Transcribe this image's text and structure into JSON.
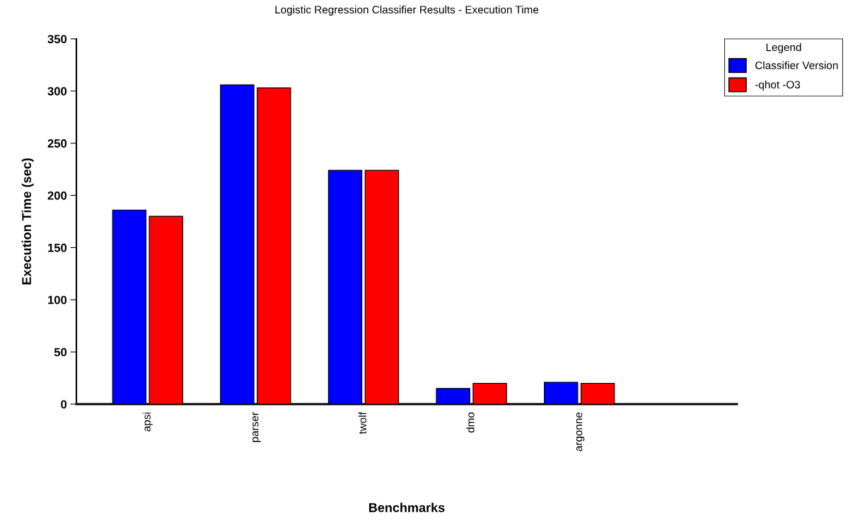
{
  "chart_data": {
    "type": "bar",
    "title": "Logistic Regression Classifier Results - Execution Time",
    "xlabel": "Benchmarks",
    "ylabel": "Execution Time (sec)",
    "legend_title": "Legend",
    "categories": [
      "apsi",
      "parser",
      "twolf",
      "dmo",
      "argonne",
      null
    ],
    "series": [
      {
        "name": "Classifier Version",
        "color": "#0000ff",
        "values": [
          186,
          306,
          224,
          15,
          21,
          null
        ]
      },
      {
        "name": "-qhot -O3",
        "color": "#ff0000",
        "values": [
          180,
          303,
          224,
          20,
          20,
          null
        ]
      }
    ],
    "ylim": [
      0,
      350
    ],
    "yticks": [
      0,
      50,
      100,
      150,
      200,
      250,
      300,
      350
    ],
    "grid": false,
    "legend": "top right"
  }
}
